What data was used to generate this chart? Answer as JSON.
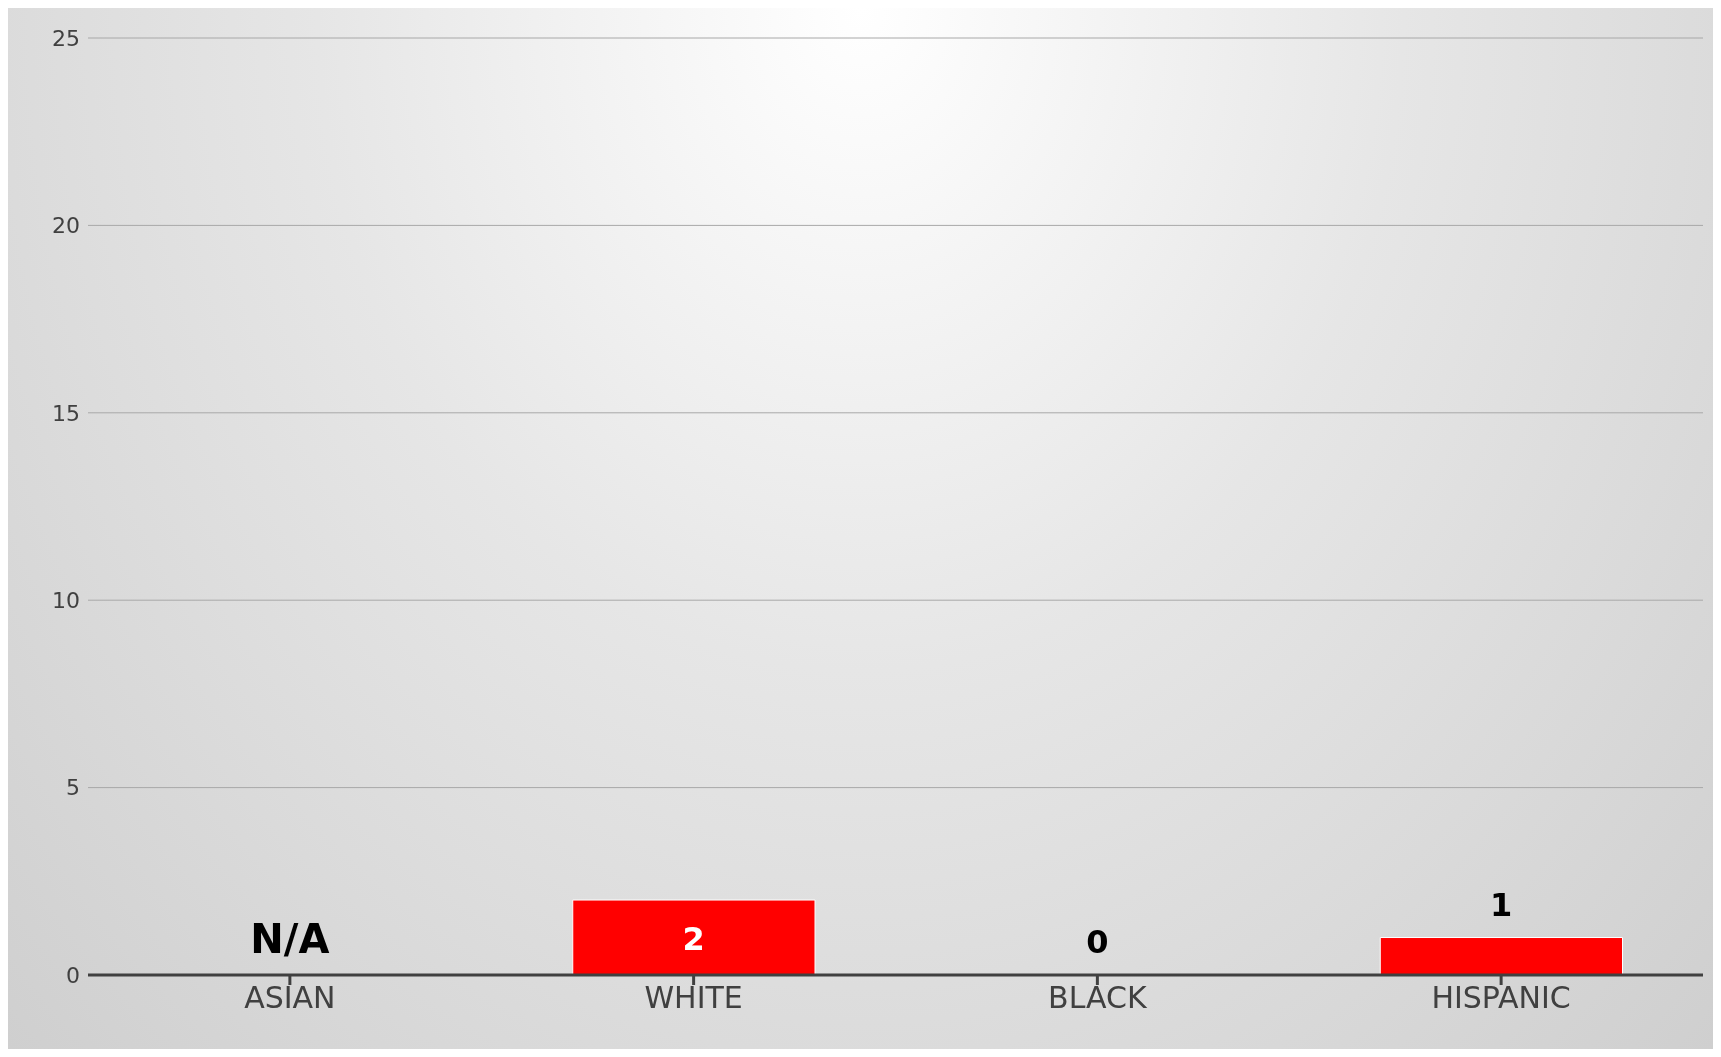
{
  "chart_data": {
    "type": "bar",
    "categories": [
      "ASIAN",
      "WHITE",
      "BLACK",
      "HISPANIC"
    ],
    "values": [
      null,
      2,
      0,
      1
    ],
    "value_labels": [
      "N/A",
      "2",
      "0",
      "1"
    ],
    "color": "#ff0000",
    "ylim": [
      0,
      25
    ],
    "yticks": [
      0,
      5,
      10,
      15,
      20,
      25
    ],
    "grid": "y"
  }
}
